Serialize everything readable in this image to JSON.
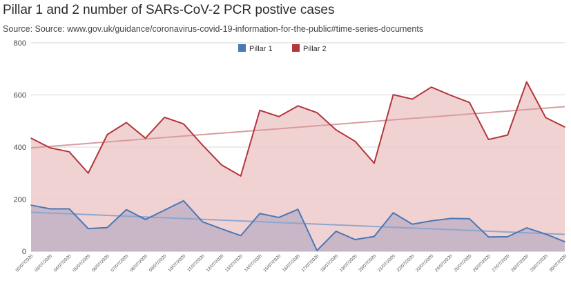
{
  "chart_data": {
    "type": "area",
    "title": "Pillar 1 and 2 number of SARs-CoV-2 PCR postive cases",
    "subtitle": "Source: Source: www.gov.uk/guidance/coronavirus-covid-19-information-for-the-public#time-series-documents",
    "xlabel": "",
    "ylabel": "",
    "ylim": [
      0,
      800
    ],
    "yticks": [
      0,
      200,
      400,
      600,
      800
    ],
    "grid": true,
    "legend": "top-center",
    "categories": [
      "02/07/2020",
      "03/07/2020",
      "04/07/2020",
      "05/07/2020",
      "06/07/2020",
      "07/07/2020",
      "08/07/2020",
      "09/07/2020",
      "10/07/2020",
      "11/07/2020",
      "12/07/2020",
      "13/07/2020",
      "14/07/2020",
      "15/07/2020",
      "16/07/2020",
      "17/07/2020",
      "18/07/2020",
      "19/07/2020",
      "20/07/2020",
      "21/07/2020",
      "22/07/2020",
      "23/07/2020",
      "24/07/2020",
      "25/07/2020",
      "26/07/2020",
      "27/07/2020",
      "28/07/2020",
      "29/07/2020",
      "30/07/2020"
    ],
    "series": [
      {
        "name": "Pillar 1",
        "color": "#4a78b5",
        "fill": "#c2b2c4",
        "trend_color": "#8ea6cd",
        "values": [
          177,
          163,
          163,
          87,
          91,
          160,
          122,
          158,
          194,
          113,
          86,
          60,
          145,
          130,
          161,
          3,
          77,
          45,
          57,
          148,
          104,
          117,
          126,
          125,
          55,
          56,
          90,
          66,
          37
        ]
      },
      {
        "name": "Pillar 2",
        "color": "#b2363b",
        "fill": "#efcacb",
        "trend_color": "#d89c9e",
        "values": [
          434,
          397,
          382,
          300,
          448,
          494,
          434,
          514,
          489,
          407,
          331,
          289,
          541,
          517,
          558,
          532,
          466,
          422,
          338,
          601,
          584,
          630,
          599,
          571,
          429,
          446,
          650,
          513,
          477
        ]
      }
    ],
    "trendlines": [
      {
        "series": "Pillar 1",
        "start": 150,
        "end": 65
      },
      {
        "series": "Pillar 2",
        "start": 397,
        "end": 555
      }
    ]
  }
}
